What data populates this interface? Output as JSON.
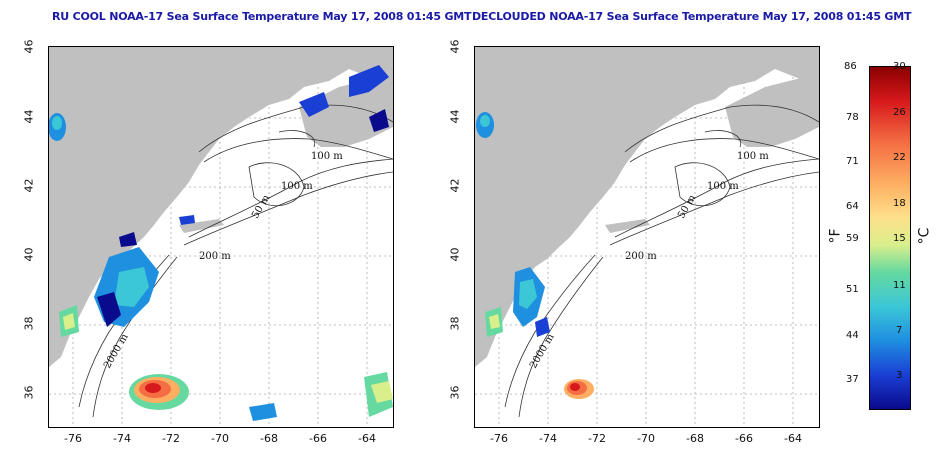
{
  "panels": [
    {
      "title": "RU COOL NOAA-17 Sea Surface Temperature May 17, 2008 01:45 GMT",
      "contour_labels": [
        "100 m",
        "100 m",
        "50 m",
        "200 m",
        "2000 m"
      ]
    },
    {
      "title": "DECLOUDED NOAA-17 Sea Surface Temperature May 17, 2008 01:45 GMT",
      "contour_labels": [
        "100 m",
        "100 m",
        "50 m",
        "200 m",
        "2000 m"
      ]
    }
  ],
  "axes": {
    "x_ticks": [
      "-76",
      "-74",
      "-72",
      "-70",
      "-68",
      "-66",
      "-64"
    ],
    "y_ticks": [
      "46",
      "44",
      "42",
      "40",
      "38",
      "36"
    ]
  },
  "colorbar": {
    "fahrenheit_ticks": [
      "86",
      "78",
      "71",
      "64",
      "59",
      "51",
      "44",
      "37"
    ],
    "celsius_ticks": [
      "30",
      "26",
      "22",
      "18",
      "15",
      "11",
      "7",
      "3"
    ],
    "fahrenheit_unit": "°F",
    "celsius_unit": "°C",
    "colors": [
      "#8b0000",
      "#d7191c",
      "#f46d43",
      "#fdae61",
      "#fee08b",
      "#d9ef8b",
      "#66d9a0",
      "#3bc7d6",
      "#1f8fe0",
      "#1a3fd4",
      "#0a0a8c"
    ]
  },
  "colors": {
    "land": "#c0c0c0",
    "ocean": "#ffffff",
    "title": "#1a1aa6",
    "grid": "#aaaaaa"
  }
}
